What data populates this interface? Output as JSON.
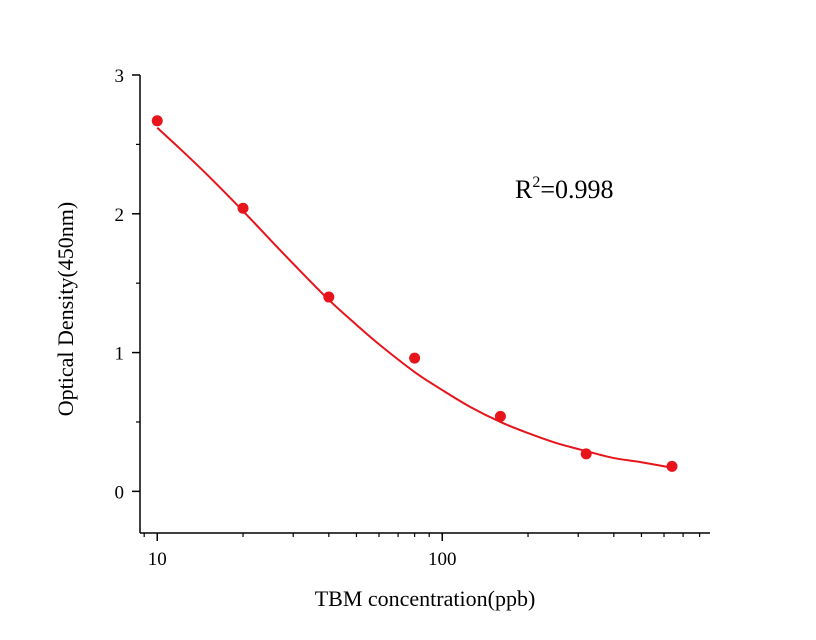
{
  "chart_data": {
    "type": "scatter",
    "xlabel": "TBM concentration(ppb)",
    "ylabel": "Optical Density(450nm)",
    "xscale": "log",
    "xlim": [
      8.7,
      870
    ],
    "ylim": [
      -0.3,
      3
    ],
    "x_ticks": [
      10,
      100
    ],
    "y_ticks": [
      0,
      1,
      2,
      3
    ],
    "grid": false,
    "annotation": {
      "base": "R",
      "sup": "2",
      "rest": "=0.998"
    },
    "points": {
      "x": [
        10,
        20,
        40,
        80,
        160,
        320,
        640
      ],
      "y": [
        2.67,
        2.04,
        1.4,
        0.96,
        0.54,
        0.27,
        0.18
      ]
    },
    "fit": {
      "model": "4PL",
      "x": [
        10,
        12,
        15,
        20,
        25,
        30,
        40,
        50,
        60,
        80,
        100,
        125,
        160,
        200,
        250,
        320,
        400,
        500,
        640
      ],
      "y": [
        2.62,
        2.47,
        2.28,
        2.02,
        1.81,
        1.64,
        1.38,
        1.2,
        1.06,
        0.86,
        0.73,
        0.61,
        0.5,
        0.42,
        0.35,
        0.29,
        0.24,
        0.21,
        0.17
      ]
    },
    "colors": {
      "series": "#e8141b",
      "axis": "#000000"
    }
  }
}
